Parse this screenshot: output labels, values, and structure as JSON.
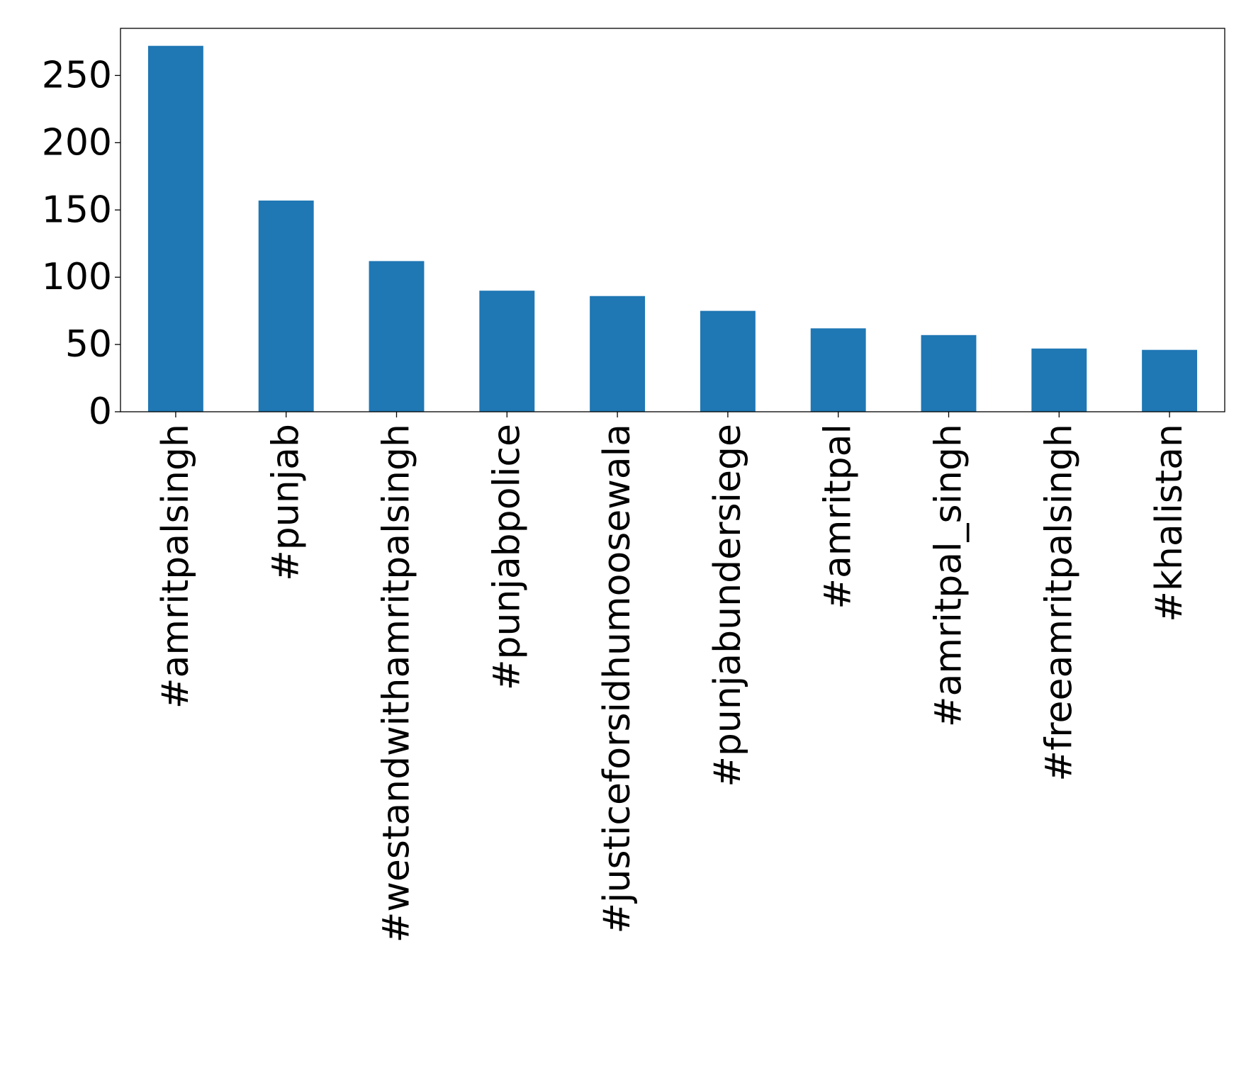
{
  "chart_data": {
    "type": "bar",
    "categories": [
      "#amritpalsingh",
      "#punjab",
      "#westandwithamritpalsingh",
      "#punjabpolice",
      "#justiceforsidhumoosewala",
      "#punjabundersiege",
      "#amritpal",
      "#amritpal_singh",
      "#freeamritpalsingh",
      "#khalistan"
    ],
    "values": [
      272,
      157,
      112,
      90,
      86,
      75,
      62,
      57,
      47,
      46
    ],
    "yticks": [
      "0",
      "50",
      "100",
      "150",
      "200",
      "250"
    ],
    "ylim": [
      0,
      285
    ],
    "grid": false,
    "legend": "none",
    "title": "",
    "xlabel": "",
    "ylabel": "",
    "colors": {
      "bar": "#1f77b4",
      "axis": "#000000"
    }
  }
}
